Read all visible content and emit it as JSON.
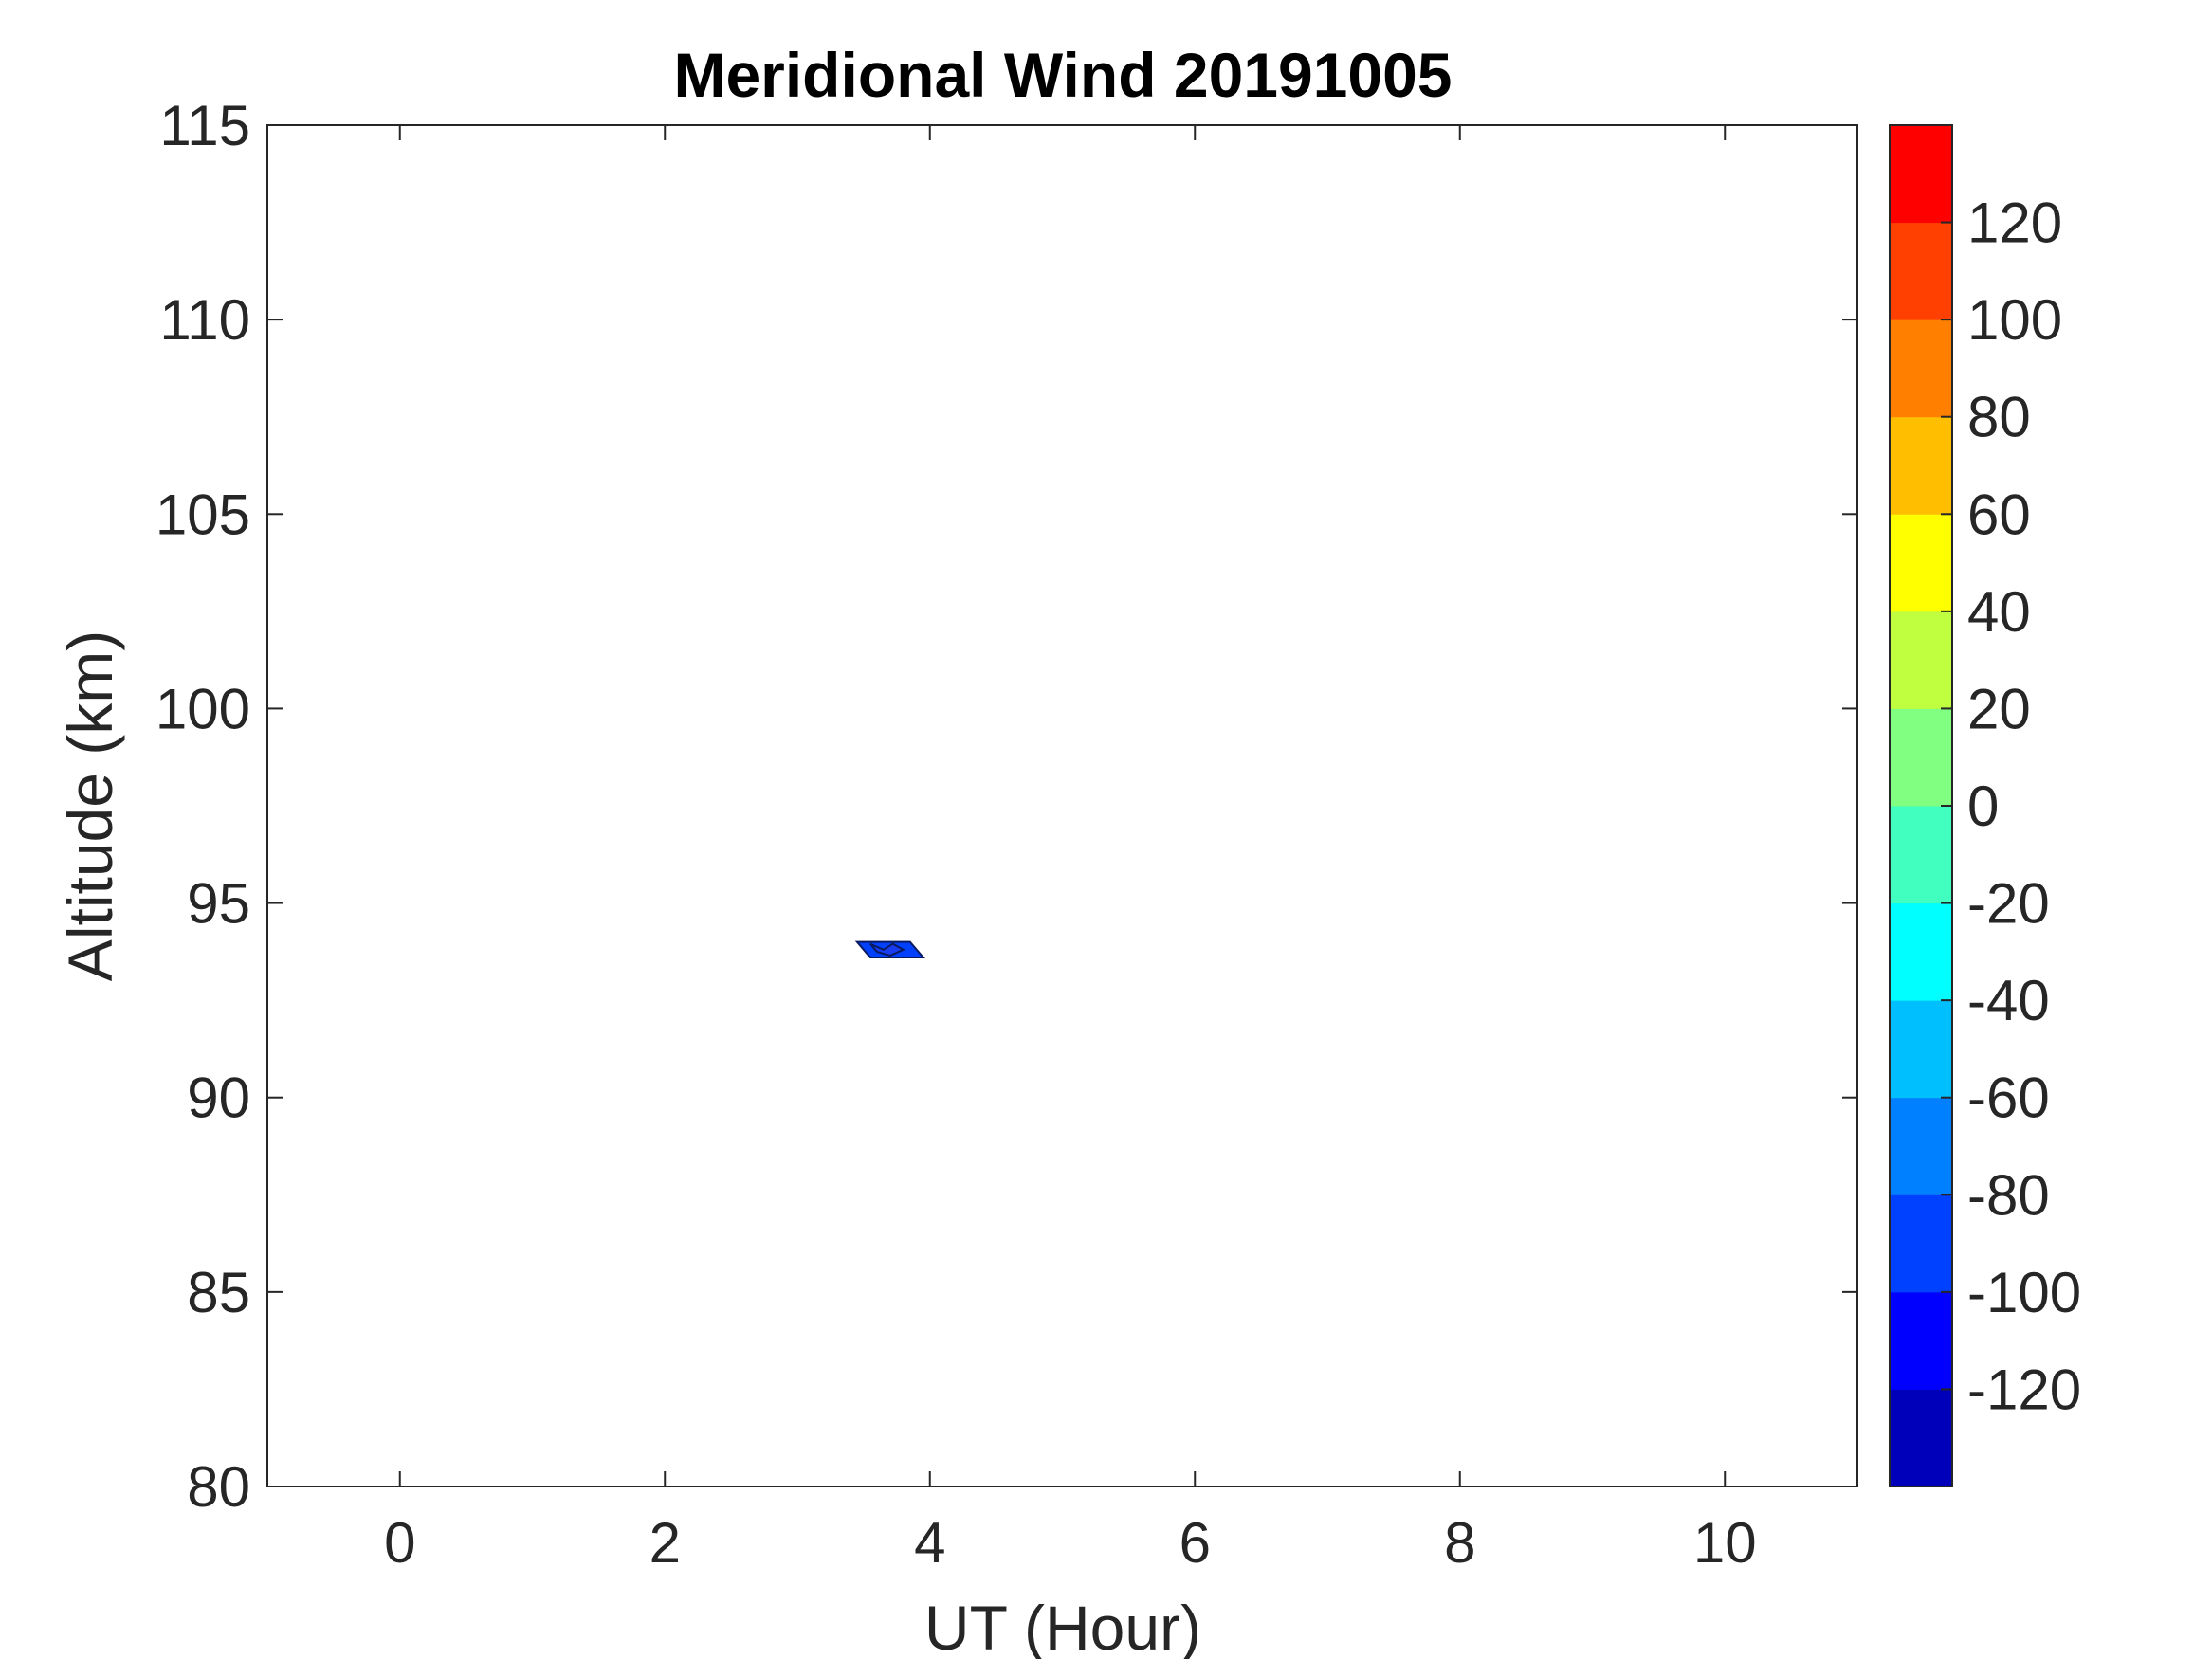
{
  "chart_data": {
    "type": "heatmap",
    "title": "Meridional Wind 20191005",
    "xlabel": "UT (Hour)",
    "ylabel": "Altitude (km)",
    "xlim": [
      -1,
      11
    ],
    "ylim": [
      80,
      115
    ],
    "xticks": [
      "0",
      "2",
      "4",
      "6",
      "8",
      "10"
    ],
    "yticks": [
      "80",
      "85",
      "90",
      "95",
      "100",
      "105",
      "110",
      "115"
    ],
    "grid": false,
    "colorbar": {
      "location": "right",
      "range": [
        -140,
        140
      ],
      "ticks": [
        "-120",
        "-100",
        "-80",
        "-60",
        "-40",
        "-20",
        "0",
        "20",
        "40",
        "60",
        "80",
        "100",
        "120"
      ],
      "levels": [
        {
          "from": -140,
          "to": -120,
          "color": "#0000bb"
        },
        {
          "from": -120,
          "to": -100,
          "color": "#0000ff"
        },
        {
          "from": -100,
          "to": -80,
          "color": "#0040ff"
        },
        {
          "from": -80,
          "to": -60,
          "color": "#0080ff"
        },
        {
          "from": -60,
          "to": -40,
          "color": "#00bfff"
        },
        {
          "from": -40,
          "to": -20,
          "color": "#00ffff"
        },
        {
          "from": -20,
          "to": 0,
          "color": "#40ffbf"
        },
        {
          "from": 0,
          "to": 20,
          "color": "#80ff80"
        },
        {
          "from": 20,
          "to": 40,
          "color": "#bfff40"
        },
        {
          "from": 40,
          "to": 60,
          "color": "#ffff00"
        },
        {
          "from": 60,
          "to": 80,
          "color": "#ffbf00"
        },
        {
          "from": 80,
          "to": 100,
          "color": "#ff8000"
        },
        {
          "from": 100,
          "to": 120,
          "color": "#ff4000"
        },
        {
          "from": 120,
          "to": 140,
          "color": "#ff0000"
        }
      ]
    },
    "contour_patches": [
      {
        "value_range": [
          -100,
          -80
        ],
        "color": "#0040ff",
        "points": [
          [
            3.45,
            94.0
          ],
          [
            3.85,
            94.0
          ],
          [
            3.95,
            93.6
          ],
          [
            3.55,
            93.6
          ]
        ]
      },
      {
        "value_range": [
          -120,
          -100
        ],
        "color": "#1a3cf0",
        "points": [
          [
            3.55,
            93.95
          ],
          [
            3.65,
            93.8
          ],
          [
            3.72,
            93.95
          ],
          [
            3.8,
            93.8
          ],
          [
            3.7,
            93.65
          ],
          [
            3.6,
            93.75
          ]
        ]
      }
    ]
  }
}
